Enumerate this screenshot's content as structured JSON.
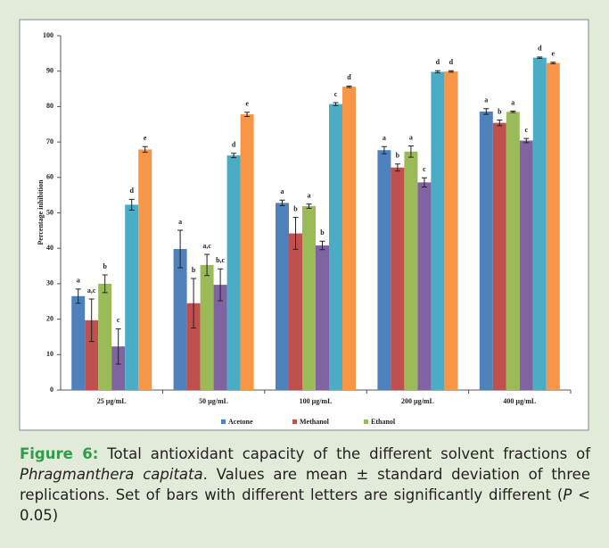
{
  "chart_data": {
    "type": "bar",
    "ylabel": "Percentage inhibition",
    "categories": [
      "25 µg/mL",
      "50 µg/mL",
      "100 µg/mL",
      "200 µg/mL",
      "400 µg/mL"
    ],
    "ylim": [
      0,
      100
    ],
    "yticks": [
      0,
      10,
      20,
      30,
      40,
      50,
      60,
      70,
      80,
      90,
      100
    ],
    "series": [
      {
        "name": "Acetone",
        "color": "#4f81bd",
        "values": [
          26.5,
          39.8,
          52.8,
          67.7,
          78.6
        ],
        "errors": [
          2,
          5.3,
          0.8,
          1,
          0.8
        ],
        "letters": [
          "a",
          "a",
          "a",
          "a",
          "a"
        ]
      },
      {
        "name": "Methanol",
        "color": "#c0504d",
        "values": [
          19.7,
          24.5,
          44.2,
          62.8,
          75.4
        ],
        "errors": [
          6,
          7,
          4.5,
          1,
          0.8
        ],
        "letters": [
          "a,c",
          "b",
          "b",
          "b",
          "b"
        ]
      },
      {
        "name": "Ethanol",
        "color": "#9bbb59",
        "values": [
          30,
          35.3,
          51.9,
          67.3,
          78.5
        ],
        "errors": [
          2.5,
          3,
          0.6,
          1.6,
          0.2
        ],
        "letters": [
          "b",
          "a,c",
          "a",
          "a",
          "a"
        ]
      },
      {
        "color": "#8064a2",
        "values": [
          12.3,
          29.7,
          40.8,
          58.6,
          70.4
        ],
        "errors": [
          5,
          4.5,
          1.2,
          1.3,
          0.6
        ],
        "letters": [
          "c",
          "b,c",
          "b",
          "c",
          "c"
        ]
      },
      {
        "color": "#4bacc6",
        "values": [
          52.3,
          66.2,
          80.7,
          89.8,
          93.8
        ],
        "errors": [
          1.5,
          0.6,
          0.4,
          0.3,
          0.2
        ],
        "letters": [
          "d",
          "d",
          "c",
          "d",
          "d"
        ]
      },
      {
        "color": "#f79646",
        "values": [
          67.9,
          77.8,
          85.6,
          89.9,
          92.3
        ],
        "errors": [
          0.8,
          0.6,
          0.2,
          0.2,
          0.2
        ],
        "letters": [
          "e",
          "e",
          "d",
          "d",
          "e"
        ]
      }
    ]
  },
  "caption": {
    "label": "Figure 6:",
    "text_1": " Total antioxidant capacity of the different solvent fractions of ",
    "species": "Phragmanthera capitata",
    "text_2": ". Values are mean ± standard deviation of three replications. Set of bars with different letters are significantly different (",
    "p": "P",
    "text_3": " < 0.05)"
  }
}
